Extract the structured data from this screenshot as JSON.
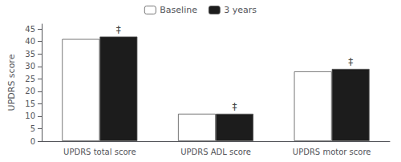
{
  "chart_data": {
    "type": "bar",
    "categories": [
      "UPDRS total score",
      "UPDRS ADL score",
      "UPDRS motor score"
    ],
    "series": [
      {
        "name": "Baseline",
        "color": "#ffffff",
        "values": [
          41.0,
          11.0,
          28.0
        ]
      },
      {
        "name": "3 years",
        "color": "#1c1c1c",
        "values": [
          42.0,
          11.0,
          29.0
        ]
      }
    ],
    "ylabel": "UPDRS score",
    "ylim": [
      0,
      47
    ],
    "yticks": [
      0,
      5,
      10,
      15,
      20,
      25,
      30,
      35,
      40,
      45
    ],
    "annotations": [
      {
        "category": "UPDRS total score",
        "series": "3 years",
        "text": "‡"
      },
      {
        "category": "UPDRS ADL score",
        "series": "3 years",
        "text": "‡"
      },
      {
        "category": "UPDRS motor score",
        "series": "3 years",
        "text": "‡"
      }
    ],
    "legend": "top",
    "grid": false
  }
}
